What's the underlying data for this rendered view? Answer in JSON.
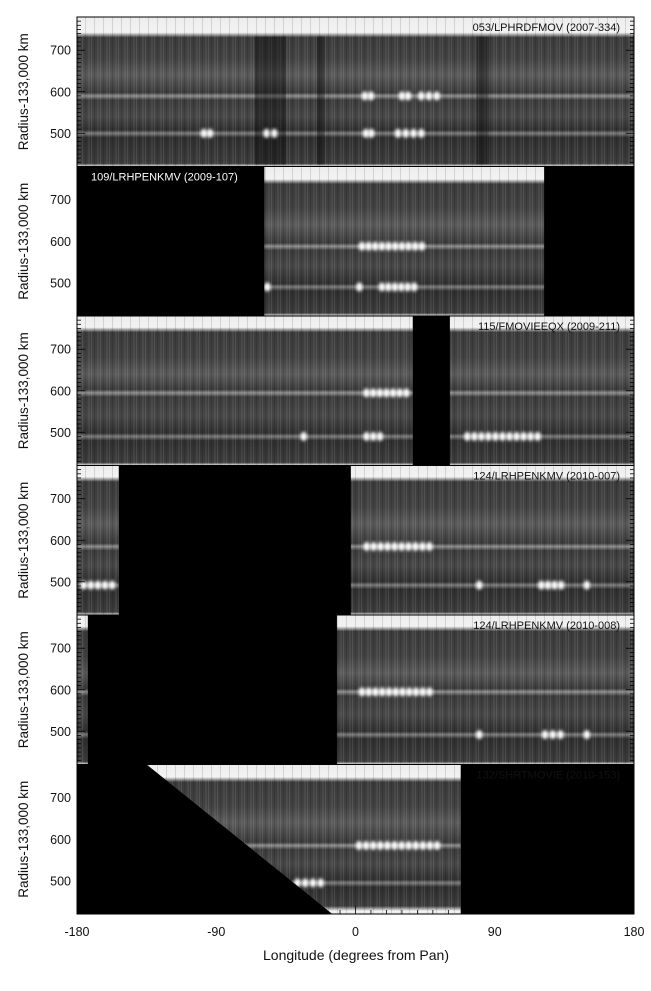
{
  "figure": {
    "x_axis": {
      "label": "Longitude (degrees from Pan)",
      "range": [
        -180,
        180
      ],
      "ticks": [
        -180,
        -90,
        0,
        90,
        180
      ]
    },
    "panels": [
      {
        "label": "053/LPHRDFMOV (2007-334)",
        "y_label": "Radius-133,000 km",
        "y_ticks": [
          500,
          600,
          700
        ],
        "y_range": [
          420,
          780
        ],
        "masked": [],
        "coverage": [
          -180,
          180
        ],
        "ring_edges": [
          420,
          738
        ],
        "bands": [
          {
            "r": 590,
            "clumps": [
              [
                4,
                12
              ],
              [
                28,
                36
              ],
              [
                40,
                55
              ]
            ]
          },
          {
            "r": 500,
            "clumps": [
              [
                -100,
                -92
              ],
              [
                -60,
                -50
              ],
              [
                5,
                12
              ],
              [
                25,
                45
              ]
            ]
          }
        ],
        "dark_strips": [
          [
            -65,
            -45
          ],
          [
            -25,
            -20
          ],
          [
            78,
            86
          ]
        ]
      },
      {
        "label": "109/LRHPENKMV (2009-107)",
        "y_label": "Radius-133,000 km",
        "y_ticks": [
          500,
          600,
          700
        ],
        "y_range": [
          420,
          780
        ],
        "masked": [
          [
            -180,
            -59
          ],
          [
            122,
            180
          ]
        ],
        "coverage": [
          -59,
          122
        ],
        "ring_edges": [
          420,
          745
        ],
        "bands": [
          {
            "r": 588,
            "clumps": [
              [
                2,
                45
              ]
            ]
          },
          {
            "r": 490,
            "clumps": [
              [
                -59,
                -55
              ],
              [
                0,
                5
              ],
              [
                15,
                40
              ]
            ]
          }
        ],
        "dark_strips": []
      },
      {
        "label": "115/FMOVIEEQX (2009-211)",
        "y_label": "Radius-133,000 km",
        "y_ticks": [
          500,
          600,
          700
        ],
        "y_range": [
          420,
          780
        ],
        "masked": [
          [
            37,
            61
          ]
        ],
        "coverage": [
          -180,
          180
        ],
        "ring_edges": [
          420,
          748
        ],
        "bands": [
          {
            "r": 595,
            "clumps": [
              [
                5,
                35
              ]
            ]
          },
          {
            "r": 490,
            "clumps": [
              [
                -35,
                -32
              ],
              [
                5,
                18
              ],
              [
                70,
                120
              ]
            ]
          }
        ],
        "dark_strips": []
      },
      {
        "label": "124/LRHPENKMV (2010-007)",
        "y_label": "Radius-133,000 km",
        "y_ticks": [
          500,
          600,
          700
        ],
        "y_range": [
          420,
          780
        ],
        "masked": [
          [
            -153,
            -3
          ]
        ],
        "coverage": [
          -180,
          180
        ],
        "ring_edges": [
          420,
          748
        ],
        "bands": [
          {
            "r": 585,
            "clumps": [
              [
                5,
                50
              ]
            ]
          },
          {
            "r": 492,
            "clumps": [
              [
                -178,
                -155
              ],
              [
                78,
                82
              ],
              [
                118,
                135
              ],
              [
                148,
                151
              ]
            ]
          }
        ],
        "dark_strips": []
      },
      {
        "label": "124/LRHPENKMV (2010-008)",
        "y_label": "Radius-133,000 km",
        "y_ticks": [
          500,
          600,
          700
        ],
        "y_range": [
          420,
          780
        ],
        "masked": [
          [
            -173,
            -12
          ]
        ],
        "coverage": [
          -180,
          180
        ],
        "ring_edges": [
          420,
          748
        ],
        "bands": [
          {
            "r": 595,
            "clumps": [
              [
                2,
                50
              ]
            ]
          },
          {
            "r": 492,
            "clumps": [
              [
                78,
                82
              ],
              [
                120,
                135
              ],
              [
                148,
                151
              ]
            ]
          }
        ],
        "dark_strips": []
      },
      {
        "label": "132/SHRTMOVIE (2010-153)",
        "y_label": "Radius-133,000 km",
        "y_ticks": [
          500,
          600,
          700
        ],
        "y_range": [
          420,
          780
        ],
        "masked": [
          [
            68,
            180
          ]
        ],
        "coverage": [
          -180,
          180
        ],
        "ring_edges": [
          432,
          745
        ],
        "triangle_mask": [
          [
            -180,
            780
          ],
          [
            -135,
            780
          ],
          [
            -15,
            420
          ],
          [
            -180,
            420
          ]
        ],
        "bands": [
          {
            "r": 585,
            "clumps": [
              [
                0,
                55
              ]
            ]
          },
          {
            "r": 495,
            "clumps": [
              [
                -40,
                -20
              ]
            ]
          }
        ],
        "dark_strips": []
      }
    ]
  }
}
